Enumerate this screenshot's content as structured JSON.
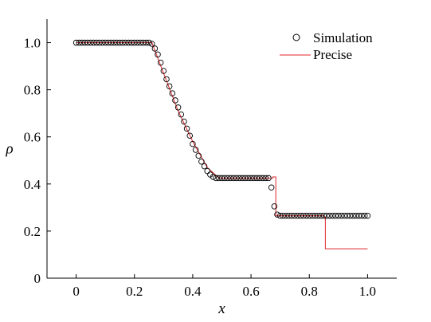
{
  "chart_data": {
    "type": "scatter",
    "title": "",
    "xlabel": "x",
    "ylabel": "ρ",
    "xlim": [
      -0.1,
      1.1
    ],
    "ylim": [
      0,
      1.1
    ],
    "xticks": [
      0,
      0.2,
      0.4,
      0.6,
      0.8,
      1.0
    ],
    "xtick_labels": [
      "0",
      "0.2",
      "0.4",
      "0.6",
      "0.8",
      "1.0"
    ],
    "yticks": [
      0,
      0.2,
      0.4,
      0.6,
      0.8,
      1.0
    ],
    "ytick_labels": [
      "0",
      "0.2",
      "0.4",
      "0.6",
      "0.8",
      "1.0"
    ],
    "grid": false,
    "legend_position": "top-right",
    "series": [
      {
        "name": "Simulation",
        "kind": "scatter",
        "marker": "open-circle",
        "color": "#000000",
        "x": [
          0.0,
          0.01,
          0.02,
          0.03,
          0.04,
          0.05,
          0.06,
          0.07,
          0.08,
          0.09,
          0.1,
          0.11,
          0.12,
          0.13,
          0.14,
          0.15,
          0.16,
          0.17,
          0.18,
          0.19,
          0.2,
          0.21,
          0.22,
          0.23,
          0.24,
          0.25,
          0.26,
          0.27,
          0.28,
          0.29,
          0.3,
          0.31,
          0.32,
          0.33,
          0.34,
          0.35,
          0.36,
          0.37,
          0.38,
          0.39,
          0.4,
          0.41,
          0.42,
          0.43,
          0.44,
          0.45,
          0.46,
          0.47,
          0.48,
          0.49,
          0.5,
          0.51,
          0.52,
          0.53,
          0.54,
          0.55,
          0.56,
          0.57,
          0.58,
          0.59,
          0.6,
          0.61,
          0.62,
          0.63,
          0.64,
          0.65,
          0.66,
          0.67,
          0.68,
          0.69,
          0.7,
          0.71,
          0.72,
          0.73,
          0.74,
          0.75,
          0.76,
          0.77,
          0.78,
          0.79,
          0.8,
          0.81,
          0.82,
          0.83,
          0.84,
          0.85,
          0.86,
          0.87,
          0.88,
          0.89,
          0.9,
          0.91,
          0.92,
          0.93,
          0.94,
          0.95,
          0.96,
          0.97,
          0.98,
          0.99,
          1.0
        ],
        "y": [
          1.0,
          1.0,
          1.0,
          1.0,
          1.0,
          1.0,
          1.0,
          1.0,
          1.0,
          1.0,
          1.0,
          1.0,
          1.0,
          1.0,
          1.0,
          1.0,
          1.0,
          1.0,
          1.0,
          1.0,
          1.0,
          1.0,
          1.0,
          1.0,
          1.0,
          1.0,
          0.995,
          0.975,
          0.95,
          0.915,
          0.88,
          0.845,
          0.815,
          0.785,
          0.755,
          0.725,
          0.695,
          0.665,
          0.635,
          0.605,
          0.57,
          0.545,
          0.52,
          0.495,
          0.475,
          0.455,
          0.44,
          0.43,
          0.425,
          0.425,
          0.425,
          0.425,
          0.425,
          0.425,
          0.425,
          0.425,
          0.425,
          0.425,
          0.425,
          0.425,
          0.425,
          0.425,
          0.425,
          0.425,
          0.425,
          0.425,
          0.425,
          0.385,
          0.305,
          0.27,
          0.265,
          0.265,
          0.265,
          0.265,
          0.265,
          0.265,
          0.265,
          0.265,
          0.265,
          0.265,
          0.265,
          0.265,
          0.265,
          0.265,
          0.265,
          0.265,
          0.265,
          0.265,
          0.265,
          0.265,
          0.265,
          0.265,
          0.265,
          0.265,
          0.265,
          0.265,
          0.265,
          0.265,
          0.265,
          0.265,
          0.265
        ]
      },
      {
        "name": "Precise",
        "kind": "line",
        "color": "#e0262b",
        "x": [
          0.0,
          0.26,
          0.3,
          0.35,
          0.4,
          0.45,
          0.49,
          0.675,
          0.675,
          0.685,
          0.685,
          0.85,
          0.85,
          0.855,
          0.855,
          1.0
        ],
        "y": [
          1.0,
          1.0,
          0.87,
          0.71,
          0.58,
          0.47,
          0.425,
          0.425,
          0.43,
          0.43,
          0.265,
          0.265,
          0.26,
          0.26,
          0.125,
          0.125
        ]
      }
    ]
  }
}
